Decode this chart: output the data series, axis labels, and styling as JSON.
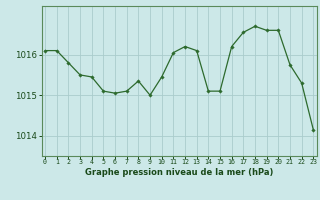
{
  "x": [
    0,
    1,
    2,
    3,
    4,
    5,
    6,
    7,
    8,
    9,
    10,
    11,
    12,
    13,
    14,
    15,
    16,
    17,
    18,
    19,
    20,
    21,
    22,
    23
  ],
  "y": [
    1016.1,
    1016.1,
    1015.8,
    1015.5,
    1015.45,
    1015.1,
    1015.05,
    1015.1,
    1015.35,
    1015.0,
    1015.45,
    1016.05,
    1016.2,
    1016.1,
    1015.1,
    1015.1,
    1016.2,
    1016.55,
    1016.7,
    1016.6,
    1016.6,
    1015.75,
    1015.3,
    1014.15
  ],
  "line_color": "#2d6a2d",
  "marker_color": "#2d6a2d",
  "bg_color": "#cce8e8",
  "grid_color": "#aacccc",
  "xlabel": "Graphe pression niveau de la mer (hPa)",
  "xlabel_color": "#1a4a1a",
  "tick_color": "#1a4a1a",
  "axis_color": "#5a8a5a",
  "ylim": [
    1013.5,
    1017.2
  ],
  "yticks": [
    1014,
    1015,
    1016
  ],
  "xlim": [
    -0.3,
    23.3
  ]
}
